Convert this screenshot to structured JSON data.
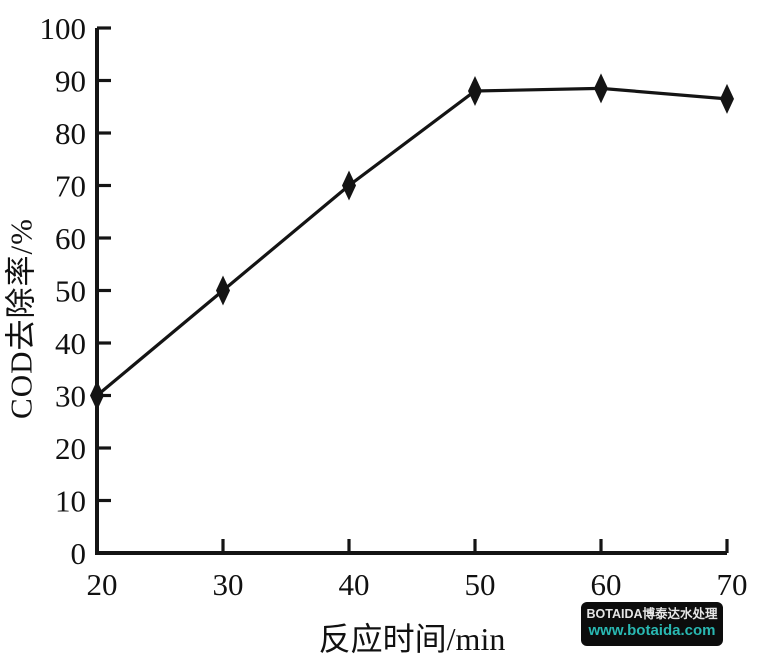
{
  "chart_data": {
    "type": "line",
    "title": "",
    "x": [
      20,
      30,
      40,
      50,
      60,
      70
    ],
    "series": [
      {
        "name": "COD去除率",
        "values": [
          30,
          50,
          70,
          88,
          88.5,
          86.5
        ]
      }
    ],
    "xlabel": "反应时间/min",
    "ylabel": "COD去除率/%",
    "xlim": [
      20,
      70
    ],
    "ylim": [
      0,
      100
    ],
    "x_ticks": [
      20,
      30,
      40,
      50,
      60,
      70
    ],
    "y_ticks": [
      0,
      10,
      20,
      30,
      40,
      50,
      60,
      70,
      80,
      90,
      100
    ],
    "grid": false,
    "legend": "none",
    "marker": "diamond",
    "line_color": "#141414",
    "axis_color": "#141414",
    "tick_label_color": "#111111"
  },
  "watermark": {
    "line1": "BOTAIDA博泰达水处理",
    "line2": "www.botaida.com",
    "bg_color": "#0c0c0c",
    "line1_color": "#e6e6e6",
    "line2_color": "#29b8b2"
  }
}
